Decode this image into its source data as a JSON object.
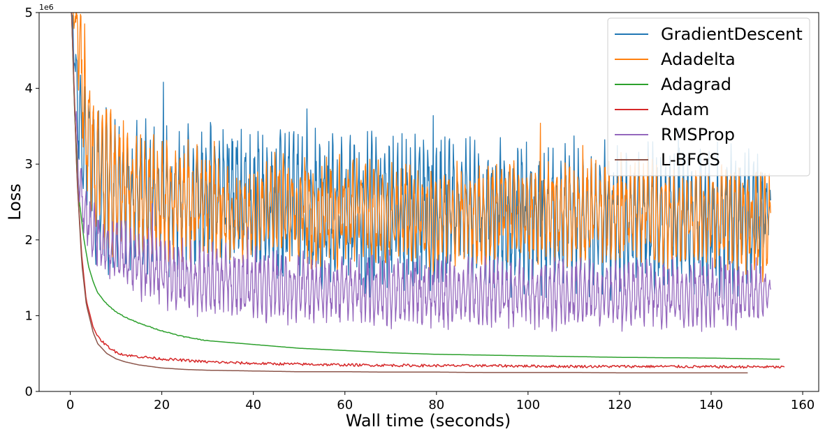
{
  "chart_data": {
    "type": "line",
    "title": "",
    "xlabel": "Wall time (seconds)",
    "ylabel": "Loss",
    "y_offset_label": "1e6",
    "xlim": [
      -6.8,
      163.5
    ],
    "ylim": [
      0,
      5
    ],
    "x_ticks": [
      0,
      20,
      40,
      60,
      80,
      100,
      120,
      140,
      160
    ],
    "x_tick_labels": [
      "0",
      "20",
      "40",
      "60",
      "80",
      "100",
      "120",
      "140",
      "160"
    ],
    "y_ticks": [
      0,
      1,
      2,
      3,
      4,
      5
    ],
    "y_tick_labels": [
      "0",
      "1",
      "2",
      "3",
      "4",
      "5"
    ],
    "grid": false,
    "legend_position": "top-right",
    "series": [
      {
        "name": "GradientDescent",
        "color": "#1f77b4",
        "x": [
          0.3,
          0.8,
          1.5,
          3,
          6,
          10,
          15,
          20,
          25,
          30,
          35,
          40,
          45,
          50,
          55,
          60,
          65,
          70,
          75,
          80,
          85,
          90,
          95,
          100,
          105,
          110,
          115,
          120,
          125,
          130,
          135,
          140,
          145,
          150,
          153
        ],
        "y": [
          5.0,
          4.6,
          3.9,
          3.2,
          2.8,
          2.6,
          2.6,
          2.5,
          2.6,
          2.5,
          2.6,
          2.5,
          2.4,
          2.5,
          2.4,
          2.4,
          2.3,
          2.4,
          2.4,
          2.3,
          2.4,
          2.3,
          2.3,
          2.3,
          2.3,
          2.3,
          2.3,
          2.2,
          2.3,
          2.3,
          2.2,
          2.2,
          2.3,
          2.3,
          2.45
        ],
        "osc": [
          0,
          0.3,
          0.8,
          1.0,
          1.0,
          0.95,
          0.95,
          0.9,
          0.9,
          0.9,
          0.9,
          0.9,
          0.95,
          0.9,
          0.9,
          0.9,
          0.95,
          0.9,
          0.9,
          0.9,
          0.9,
          0.9,
          0.9,
          0.9,
          0.9,
          0.9,
          0.9,
          0.9,
          0.9,
          0.9,
          0.9,
          0.9,
          0.9,
          0.9,
          0.2
        ]
      },
      {
        "name": "Adadelta",
        "color": "#ff7f0e",
        "x": [
          0.3,
          1,
          2,
          3.5,
          6,
          10,
          15,
          20,
          25,
          30,
          35,
          40,
          45,
          50,
          55,
          60,
          65,
          70,
          75,
          80,
          85,
          90,
          95,
          100,
          105,
          110,
          115,
          120,
          125,
          130,
          135,
          140,
          145,
          150,
          153
        ],
        "y": [
          5.0,
          5.0,
          4.5,
          3.6,
          2.9,
          2.7,
          2.6,
          2.55,
          2.5,
          2.5,
          2.3,
          2.3,
          2.5,
          2.4,
          2.3,
          2.4,
          2.4,
          2.3,
          2.4,
          2.2,
          2.4,
          2.3,
          2.4,
          2.3,
          2.4,
          2.3,
          2.4,
          2.3,
          2.4,
          2.3,
          2.3,
          2.3,
          2.3,
          2.2,
          2.2
        ],
        "osc": [
          0,
          0.3,
          0.8,
          1.0,
          0.9,
          0.85,
          0.8,
          0.75,
          0.7,
          0.7,
          0.55,
          0.5,
          0.6,
          0.65,
          0.7,
          0.65,
          0.6,
          0.65,
          0.6,
          0.6,
          0.6,
          0.6,
          0.6,
          0.55,
          0.6,
          0.6,
          0.6,
          0.6,
          0.6,
          0.6,
          0.6,
          0.6,
          0.65,
          0.7,
          0.6
        ]
      },
      {
        "name": "Adagrad",
        "color": "#2ca02c",
        "x": [
          0.3,
          1,
          2,
          3,
          4,
          5,
          6,
          8,
          10,
          12,
          15,
          20,
          25,
          30,
          40,
          50,
          60,
          70,
          80,
          90,
          100,
          110,
          120,
          130,
          140,
          150,
          155
        ],
        "y": [
          5.0,
          3.6,
          2.5,
          2.0,
          1.65,
          1.45,
          1.3,
          1.15,
          1.05,
          0.98,
          0.9,
          0.8,
          0.72,
          0.67,
          0.62,
          0.57,
          0.54,
          0.51,
          0.49,
          0.48,
          0.47,
          0.46,
          0.45,
          0.445,
          0.44,
          0.43,
          0.425
        ]
      },
      {
        "name": "Adam",
        "color": "#d62728",
        "x": [
          0.3,
          0.8,
          1.5,
          2.5,
          3.5,
          5,
          6,
          8,
          10,
          12,
          15,
          20,
          25,
          30,
          40,
          50,
          60,
          70,
          80,
          90,
          100,
          110,
          120,
          130,
          140,
          150,
          156
        ],
        "y": [
          5.0,
          4.1,
          2.8,
          1.8,
          1.2,
          0.85,
          0.72,
          0.6,
          0.52,
          0.48,
          0.46,
          0.43,
          0.41,
          0.39,
          0.37,
          0.36,
          0.35,
          0.345,
          0.34,
          0.34,
          0.335,
          0.33,
          0.33,
          0.33,
          0.325,
          0.325,
          0.32
        ]
      },
      {
        "name": "RMSProp",
        "color": "#9467bd",
        "x": [
          0.3,
          1,
          2,
          3,
          5,
          8,
          12,
          16,
          20,
          25,
          30,
          35,
          40,
          45,
          50,
          55,
          60,
          65,
          70,
          75,
          80,
          85,
          90,
          95,
          100,
          105,
          110,
          115,
          120,
          125,
          130,
          135,
          140,
          145,
          150,
          153
        ],
        "y": [
          5.0,
          3.8,
          2.7,
          2.4,
          2.1,
          1.9,
          1.8,
          1.65,
          1.55,
          1.5,
          1.45,
          1.45,
          1.4,
          1.4,
          1.38,
          1.35,
          1.35,
          1.33,
          1.32,
          1.32,
          1.3,
          1.3,
          1.3,
          1.3,
          1.3,
          1.28,
          1.3,
          1.28,
          1.28,
          1.3,
          1.28,
          1.28,
          1.28,
          1.3,
          1.3,
          1.35
        ],
        "osc": [
          0,
          0.2,
          0.3,
          0.35,
          0.35,
          0.35,
          0.4,
          0.4,
          0.45,
          0.45,
          0.45,
          0.45,
          0.45,
          0.45,
          0.42,
          0.42,
          0.42,
          0.42,
          0.42,
          0.42,
          0.42,
          0.42,
          0.42,
          0.4,
          0.42,
          0.42,
          0.42,
          0.42,
          0.42,
          0.42,
          0.42,
          0.42,
          0.42,
          0.42,
          0.4,
          0.2
        ]
      },
      {
        "name": "L-BFGS",
        "color": "#8c564b",
        "x": [
          0.3,
          0.8,
          1.5,
          2.5,
          3.5,
          5,
          6,
          8,
          10,
          12,
          15,
          20,
          25,
          30,
          40,
          50,
          60,
          70,
          80,
          90,
          100,
          110,
          120,
          130,
          140,
          148
        ],
        "y": [
          5.0,
          4.0,
          2.8,
          1.7,
          1.15,
          0.78,
          0.63,
          0.5,
          0.43,
          0.39,
          0.35,
          0.31,
          0.29,
          0.28,
          0.27,
          0.26,
          0.26,
          0.255,
          0.255,
          0.25,
          0.25,
          0.25,
          0.245,
          0.245,
          0.245,
          0.245
        ]
      }
    ]
  }
}
